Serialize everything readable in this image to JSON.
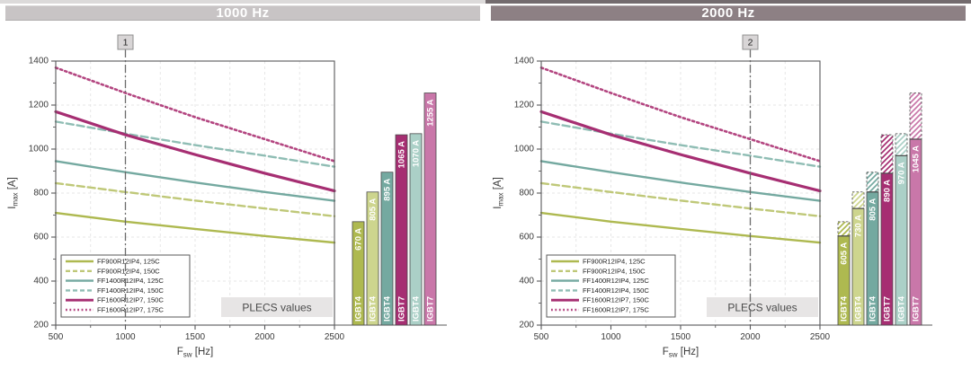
{
  "figure": {
    "panels": [
      {
        "header_label": "1000 Hz",
        "header_bg": "#c8c4c5",
        "strip_bg": "#dcdada"
      },
      {
        "header_label": "2000 Hz",
        "header_bg": "#8d8084",
        "strip_bg": "#736b6e"
      }
    ]
  },
  "styles": {
    "axis_color": "#58585a",
    "tick_label_color": "#3a3a3a",
    "grid_color": "#e4e4e4",
    "legend_border": "#58585a",
    "bar_border": "#4a4a4a",
    "bar_label_color": "#ffffff",
    "marker_line_color": "#6b6b6b",
    "marker_box_bg": "#d8d5d6",
    "marker_box_border": "#8f8f8f",
    "annotation_bg": "#e7e5e5",
    "annotation_text_color": "#4a4a4a"
  },
  "chart_data": [
    {
      "type": "line+bar",
      "title": "1000 Hz",
      "xlabel": "F_sw [Hz]",
      "ylabel": "I_max [A]",
      "xlabel_parts": {
        "base": "F",
        "sub": "sw",
        "unit": " [Hz]"
      },
      "ylabel_parts": {
        "base": "I",
        "sub": "max",
        "unit": " [A]"
      },
      "xlim": [
        500,
        2500
      ],
      "ylim": [
        200,
        1400
      ],
      "x_ticks": [
        500,
        1000,
        1500,
        2000,
        2500
      ],
      "y_ticks": [
        200,
        400,
        600,
        800,
        1000,
        1200,
        1400
      ],
      "x_minor_step": 250,
      "y_minor_step": 100,
      "grid": true,
      "legend_position": "bottom-left",
      "marker": {
        "label": "1",
        "x": 1000
      },
      "annotations": [
        {
          "text": "PLECS values"
        }
      ],
      "x": [
        500,
        1000,
        1500,
        2000,
        2500
      ],
      "series": [
        {
          "name": "FF900R12IP4, 125C",
          "color": "#aeb950",
          "style": "solid",
          "width": 2.4,
          "values": [
            710,
            670,
            637,
            605,
            575
          ]
        },
        {
          "name": "FF900R12IP4, 150C",
          "color": "#bfc878",
          "style": "dashed",
          "width": 2.4,
          "values": [
            845,
            805,
            766,
            730,
            695
          ]
        },
        {
          "name": "FF1400R12IP4, 125C",
          "color": "#74a9a0",
          "style": "solid",
          "width": 2.4,
          "values": [
            945,
            895,
            848,
            805,
            765
          ]
        },
        {
          "name": "FF1400R12IP4, 150C",
          "color": "#8fbdb4",
          "style": "dashed",
          "width": 2.4,
          "values": [
            1125,
            1070,
            1018,
            970,
            920
          ]
        },
        {
          "name": "FF1600R12IP7, 150C",
          "color": "#a62e72",
          "style": "solid",
          "width": 3.2,
          "values": [
            1170,
            1065,
            975,
            890,
            810
          ]
        },
        {
          "name": "FF1600R12IP7, 175C",
          "color": "#b34580",
          "style": "dotted",
          "width": 2.6,
          "values": [
            1370,
            1255,
            1145,
            1045,
            945
          ]
        }
      ],
      "bars": [
        {
          "category": "IGBT4",
          "label": "670 A",
          "value": 670,
          "color": "#aeb950"
        },
        {
          "category": "IGBT4",
          "label": "805 A",
          "value": 805,
          "color": "#cdd58e"
        },
        {
          "category": "IGBT4",
          "label": "895 A",
          "value": 895,
          "color": "#74a9a0"
        },
        {
          "category": "IGBT7",
          "label": "1065 A",
          "value": 1065,
          "color": "#a62e72"
        },
        {
          "category": "IGBT4",
          "label": "1070 A",
          "value": 1070,
          "color": "#abd0c7"
        },
        {
          "category": "IGBT7",
          "label": "1255 A",
          "value": 1255,
          "color": "#c977a9"
        }
      ]
    },
    {
      "type": "line+bar",
      "title": "2000 Hz",
      "xlabel": "F_sw [Hz]",
      "ylabel": "I_max [A]",
      "xlabel_parts": {
        "base": "F",
        "sub": "sw",
        "unit": " [Hz]"
      },
      "ylabel_parts": {
        "base": "I",
        "sub": "max",
        "unit": " [A]"
      },
      "xlim": [
        500,
        2500
      ],
      "ylim": [
        200,
        1400
      ],
      "x_ticks": [
        500,
        1000,
        1500,
        2000,
        2500
      ],
      "y_ticks": [
        200,
        400,
        600,
        800,
        1000,
        1200,
        1400
      ],
      "x_minor_step": 250,
      "y_minor_step": 100,
      "grid": true,
      "legend_position": "bottom-left",
      "marker": {
        "label": "2",
        "x": 2000
      },
      "annotations": [
        {
          "text": "PLECS values"
        }
      ],
      "x": [
        500,
        1000,
        1500,
        2000,
        2500
      ],
      "series": [
        {
          "name": "FF900R12IP4, 125C",
          "color": "#aeb950",
          "style": "solid",
          "width": 2.4,
          "values": [
            710,
            670,
            637,
            605,
            575
          ]
        },
        {
          "name": "FF900R12IP4, 150C",
          "color": "#bfc878",
          "style": "dashed",
          "width": 2.4,
          "values": [
            845,
            805,
            766,
            730,
            695
          ]
        },
        {
          "name": "FF1400R12IP4, 125C",
          "color": "#74a9a0",
          "style": "solid",
          "width": 2.4,
          "values": [
            945,
            895,
            848,
            805,
            765
          ]
        },
        {
          "name": "FF1400R12IP4, 150C",
          "color": "#8fbdb4",
          "style": "dashed",
          "width": 2.4,
          "values": [
            1125,
            1070,
            1018,
            970,
            920
          ]
        },
        {
          "name": "FF1600R12IP7, 150C",
          "color": "#a62e72",
          "style": "solid",
          "width": 3.2,
          "values": [
            1170,
            1065,
            975,
            890,
            810
          ]
        },
        {
          "name": "FF1600R12IP7, 175C",
          "color": "#b34580",
          "style": "dotted",
          "width": 2.6,
          "values": [
            1370,
            1255,
            1145,
            1045,
            945
          ]
        }
      ],
      "bars": [
        {
          "category": "IGBT4",
          "label": "605 A",
          "value": 605,
          "hatch_to": 670,
          "color": "#aeb950"
        },
        {
          "category": "IGBT4",
          "label": "730 A",
          "value": 730,
          "hatch_to": 805,
          "color": "#cdd58e"
        },
        {
          "category": "IGBT4",
          "label": "805 A",
          "value": 805,
          "hatch_to": 895,
          "color": "#74a9a0"
        },
        {
          "category": "IGBT7",
          "label": "890 A",
          "value": 890,
          "hatch_to": 1065,
          "color": "#a62e72"
        },
        {
          "category": "IGBT4",
          "label": "970 A",
          "value": 970,
          "hatch_to": 1070,
          "color": "#abd0c7"
        },
        {
          "category": "IGBT7",
          "label": "1045 A",
          "value": 1045,
          "hatch_to": 1255,
          "color": "#c977a9"
        }
      ]
    }
  ]
}
